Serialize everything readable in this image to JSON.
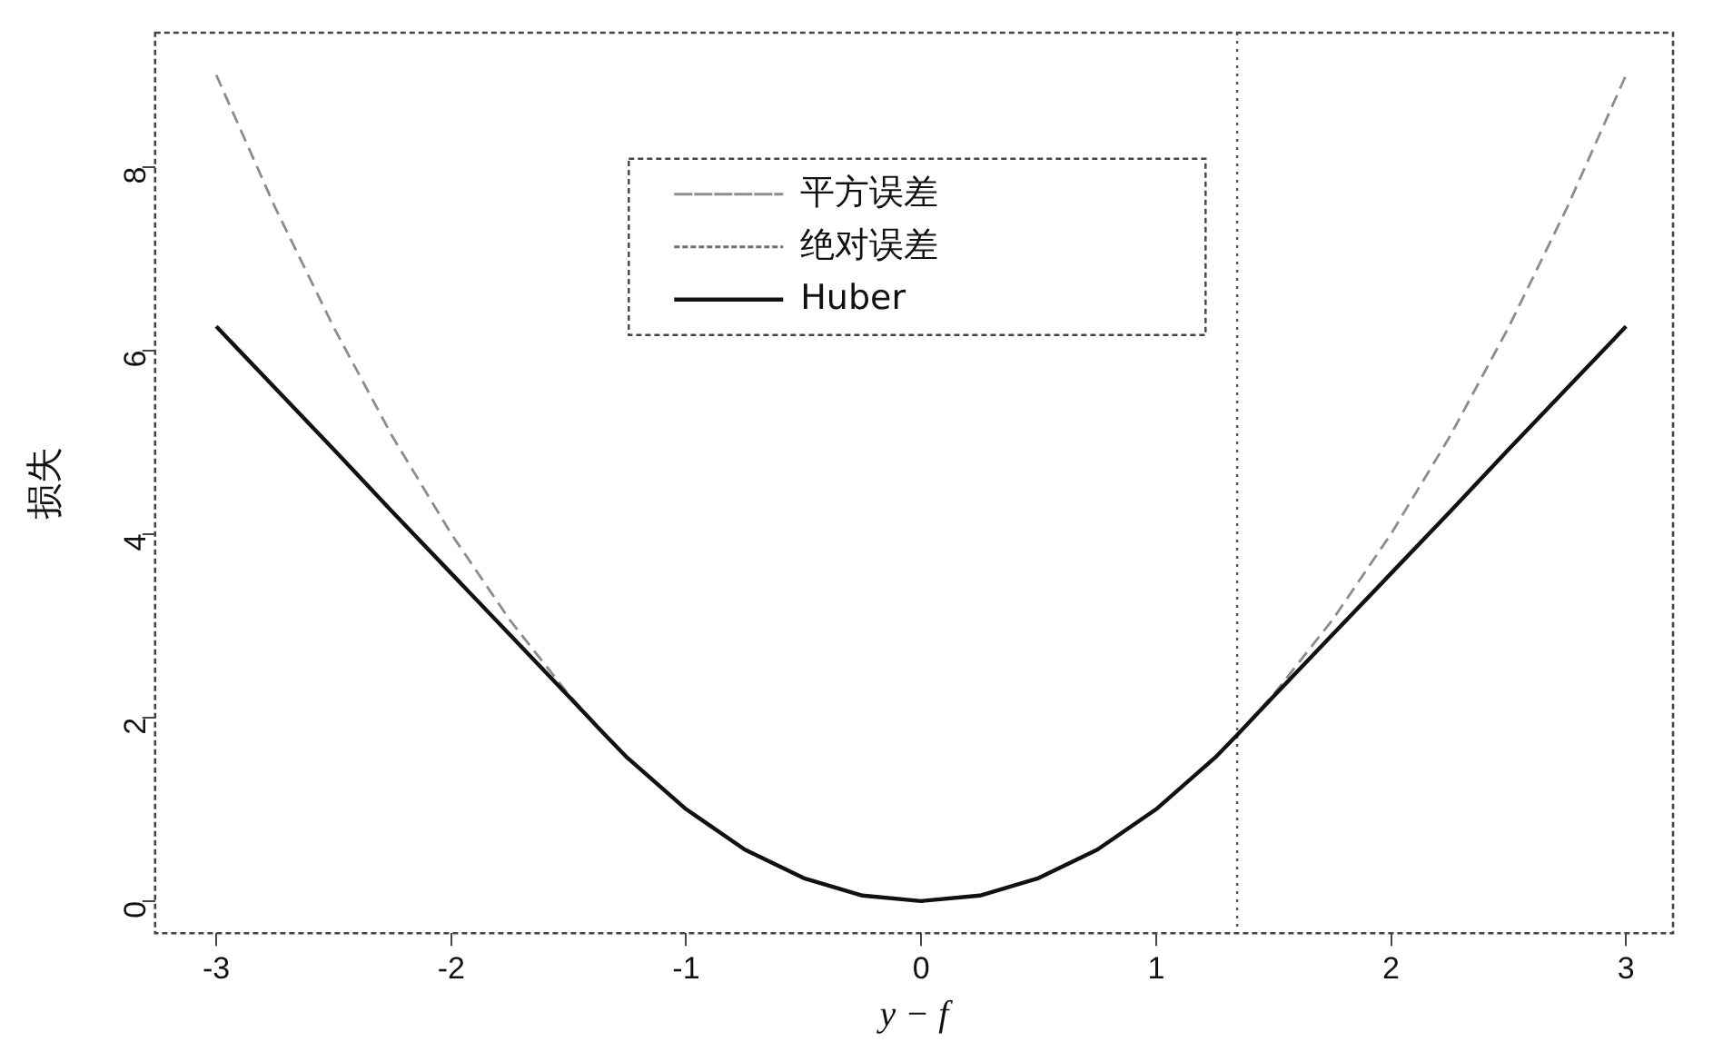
{
  "chart_data": {
    "type": "line",
    "xlabel": "y − f",
    "ylabel": "损失",
    "x": [
      -3,
      -2.75,
      -2.5,
      -2.25,
      -2,
      -1.75,
      -1.5,
      -1.345,
      -1.25,
      -1,
      -0.75,
      -0.5,
      -0.25,
      0,
      0.25,
      0.5,
      0.75,
      1,
      1.25,
      1.345,
      1.5,
      1.75,
      2,
      2.25,
      2.5,
      2.75,
      3
    ],
    "series": [
      {
        "name": "平方误差",
        "color": "#8c8c8c",
        "line_style": "dashed",
        "values": [
          9,
          7.56,
          6.25,
          5.06,
          4,
          3.06,
          2.25,
          1.81,
          1.56,
          1,
          0.56,
          0.25,
          0.06,
          0,
          0.06,
          0.25,
          0.56,
          1,
          1.56,
          1.81,
          2.25,
          3.06,
          4,
          5.06,
          6.25,
          7.56,
          9
        ]
      },
      {
        "name": "绝对误差",
        "color": "#6e6e6e",
        "line_style": "dotted",
        "values": [
          null,
          null,
          null,
          null,
          null,
          null,
          null,
          null,
          null,
          null,
          null,
          null,
          null,
          null,
          null,
          null,
          null,
          null,
          null,
          null,
          null,
          null,
          null,
          null,
          null,
          null,
          null
        ]
      },
      {
        "name": "Huber",
        "color": "#111111",
        "line_style": "solid",
        "values": [
          6.26,
          5.59,
          4.92,
          4.24,
          3.57,
          2.9,
          2.23,
          1.81,
          1.56,
          1,
          0.56,
          0.25,
          0.06,
          0,
          0.06,
          0.25,
          0.56,
          1,
          1.56,
          1.81,
          2.23,
          2.9,
          3.57,
          4.24,
          4.92,
          5.59,
          6.26
        ]
      }
    ],
    "xlim": [
      -3.26,
      3.2
    ],
    "xticks": [
      -3,
      -2,
      -1,
      0,
      1,
      2,
      3
    ],
    "ylim": [
      -0.35,
      9.46
    ],
    "yticks": [
      0,
      2,
      4,
      6,
      8
    ],
    "ref_lines": [
      {
        "axis": "x",
        "value": 1.345,
        "color": "#555555",
        "line_style": "dotted"
      }
    ],
    "grid": false,
    "legend": "top",
    "marker": "none"
  }
}
